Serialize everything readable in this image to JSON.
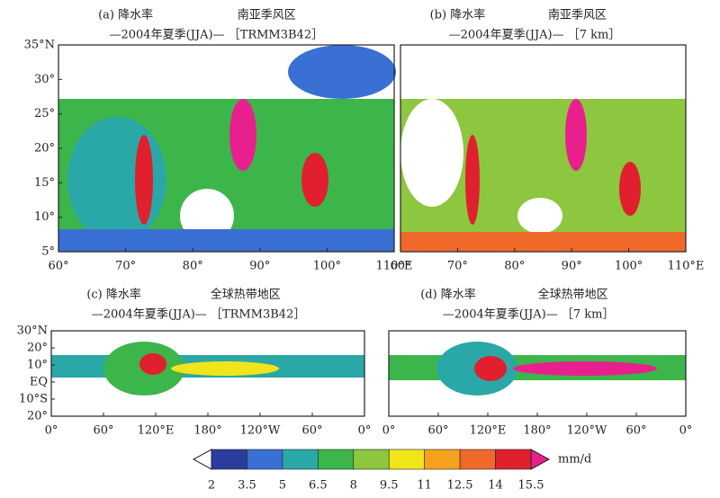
{
  "panels": [
    {
      "title": "(a) 降水率",
      "region": "南亚季风区",
      "subtitle": "—2004年夏季(JJA)— ［TRMM3B42］",
      "yticks": [
        "35°N",
        "30°",
        "25°",
        "20°",
        "15°",
        "10°",
        "5°"
      ],
      "xticks": [
        "60°",
        "70°",
        "80°",
        "90°",
        "100°",
        "110°E"
      ]
    },
    {
      "title": "(b) 降水率",
      "region": "南亚季风区",
      "subtitle": "—2004年夏季(JJA)— ［7 km］",
      "yticks": [],
      "xticks": [
        "60°",
        "70°",
        "80°",
        "90°",
        "100°",
        "110°E"
      ]
    },
    {
      "title": "(c) 降水率",
      "region": "全球热带地区",
      "subtitle": "—2004年夏季(JJA)— ［TRMM3B42］",
      "yticks": [
        "30°N",
        "20°",
        "10°",
        "EQ",
        "10°S",
        "20°"
      ],
      "xticks": [
        "0°",
        "60°",
        "120°E",
        "180°",
        "120°W",
        "60°",
        "0°"
      ]
    },
    {
      "title": "(d) 降水率",
      "region": "全球热带地区",
      "subtitle": "—2004年夏季(JJA)— ［7 km］",
      "yticks": [],
      "xticks": [
        "0°",
        "60°",
        "120°E",
        "180°",
        "120°W",
        "60°",
        "0°"
      ]
    }
  ],
  "colorbar": {
    "unit": "mm/d",
    "ticks": [
      "2",
      "3.5",
      "5",
      "6.5",
      "8",
      "9.5",
      "11",
      "12.5",
      "14",
      "15.5"
    ],
    "colors": [
      "#ffffff",
      "#2b3c9c",
      "#3a6fd4",
      "#2aa8a8",
      "#3cb54a",
      "#8dc63f",
      "#efe51a",
      "#f4a11d",
      "#ef6a2a",
      "#e0202e",
      "#e8208e"
    ]
  }
}
